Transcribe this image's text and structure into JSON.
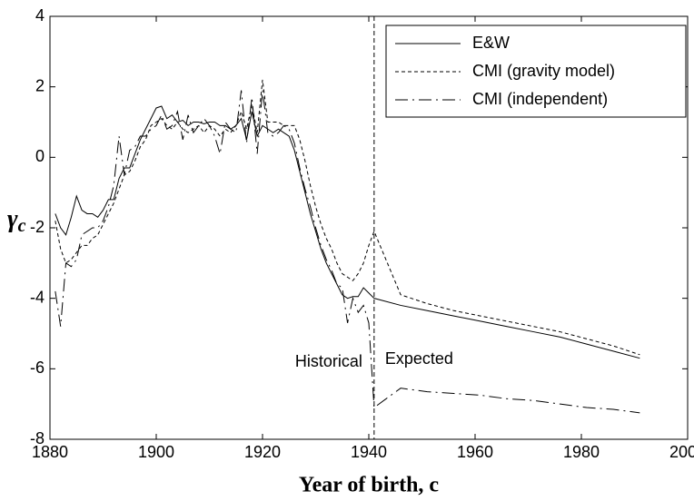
{
  "chart_data": {
    "type": "line",
    "xlabel": "Year of birth, c",
    "ylabel": {
      "symbol": "γ",
      "subscript": "c"
    },
    "x": [
      1881,
      1882,
      1883,
      1884,
      1885,
      1886,
      1887,
      1888,
      1889,
      1890,
      1891,
      1892,
      1893,
      1894,
      1895,
      1896,
      1897,
      1898,
      1899,
      1900,
      1901,
      1902,
      1903,
      1904,
      1905,
      1906,
      1907,
      1908,
      1909,
      1910,
      1911,
      1912,
      1913,
      1914,
      1915,
      1916,
      1917,
      1918,
      1919,
      1920,
      1921,
      1922,
      1923,
      1924,
      1925,
      1926,
      1927,
      1928,
      1929,
      1930,
      1931,
      1932,
      1933,
      1934,
      1935,
      1936,
      1937,
      1938,
      1939,
      1940,
      1941,
      1946,
      1951,
      1956,
      1961,
      1966,
      1971,
      1976,
      1981,
      1986,
      1991
    ],
    "series": [
      {
        "name": "E&W",
        "color": "#000000",
        "style": "solid",
        "values": [
          -1.6,
          -2.0,
          -2.2,
          -1.7,
          -1.1,
          -1.5,
          -1.6,
          -1.6,
          -1.7,
          -1.5,
          -1.2,
          -1.2,
          -0.6,
          -0.3,
          -0.3,
          0.1,
          0.5,
          0.8,
          1.1,
          1.4,
          1.45,
          1.1,
          1.2,
          1.0,
          1.05,
          0.9,
          1.0,
          1.0,
          0.95,
          1.0,
          1.0,
          0.9,
          0.9,
          0.8,
          0.9,
          1.1,
          0.5,
          1.3,
          0.6,
          0.9,
          0.8,
          0.7,
          0.8,
          0.7,
          0.6,
          0.2,
          -0.4,
          -1.0,
          -1.6,
          -2.1,
          -2.6,
          -3.0,
          -3.3,
          -3.6,
          -3.9,
          -4.0,
          -3.95,
          -3.95,
          -3.7,
          -3.85,
          -4.0,
          -4.2,
          -4.35,
          -4.5,
          -4.65,
          -4.8,
          -4.95,
          -5.1,
          -5.3,
          -5.5,
          -5.7
        ]
      },
      {
        "name": "CMI (gravity model)",
        "color": "#000000",
        "style": "dotted",
        "values": [
          -1.8,
          -2.6,
          -3.0,
          -2.9,
          -2.7,
          -2.5,
          -2.5,
          -2.3,
          -2.2,
          -1.9,
          -1.6,
          -1.3,
          -0.9,
          -0.5,
          -0.4,
          -0.1,
          0.3,
          0.5,
          0.9,
          1.0,
          1.1,
          0.9,
          0.8,
          1.0,
          0.8,
          0.7,
          0.8,
          0.9,
          0.7,
          0.9,
          0.8,
          0.6,
          0.8,
          0.7,
          0.9,
          1.3,
          0.8,
          1.5,
          0.7,
          2.2,
          1.0,
          1.0,
          1.0,
          0.9,
          0.9,
          0.9,
          0.5,
          -0.1,
          -0.8,
          -1.4,
          -1.9,
          -2.3,
          -2.6,
          -3.0,
          -3.3,
          -3.4,
          -3.5,
          -3.3,
          -3.0,
          -2.5,
          -2.1,
          -3.9,
          -4.15,
          -4.35,
          -4.5,
          -4.65,
          -4.8,
          -4.95,
          -5.15,
          -5.35,
          -5.6
        ]
      },
      {
        "name": "CMI (independent)",
        "color": "#000000",
        "style": "dashdot",
        "values": [
          -3.8,
          -4.8,
          -3.0,
          -3.1,
          -2.9,
          -2.2,
          -2.1,
          -2.0,
          -2.0,
          -1.8,
          -1.4,
          -0.8,
          0.6,
          -0.5,
          0.2,
          0.3,
          0.6,
          0.6,
          0.8,
          0.9,
          1.2,
          0.8,
          0.9,
          1.3,
          0.5,
          1.2,
          0.7,
          0.9,
          1.1,
          0.9,
          0.6,
          0.1,
          1.0,
          0.8,
          0.7,
          1.9,
          0.4,
          1.7,
          0.1,
          1.9,
          0.7,
          0.6,
          0.7,
          0.9,
          0.8,
          0.4,
          -0.3,
          -0.9,
          -1.4,
          -2.0,
          -2.5,
          -2.9,
          -3.2,
          -3.6,
          -3.7,
          -4.7,
          -4.0,
          -4.4,
          -4.2,
          -4.7,
          -7.1,
          -6.55,
          -6.65,
          -6.7,
          -6.75,
          -6.85,
          -6.9,
          -7.0,
          -7.1,
          -7.15,
          -7.25
        ]
      }
    ],
    "xlim": [
      1880,
      2000
    ],
    "xticks": [
      1880,
      1900,
      1920,
      1940,
      1960,
      1980,
      2000
    ],
    "ylim": [
      -8,
      4
    ],
    "yticks": [
      -8,
      -6,
      -4,
      -2,
      0,
      2,
      4
    ],
    "vline": 1941,
    "annotations": [
      "Historical",
      "Expected"
    ],
    "legend": "upper right",
    "grid": false
  }
}
